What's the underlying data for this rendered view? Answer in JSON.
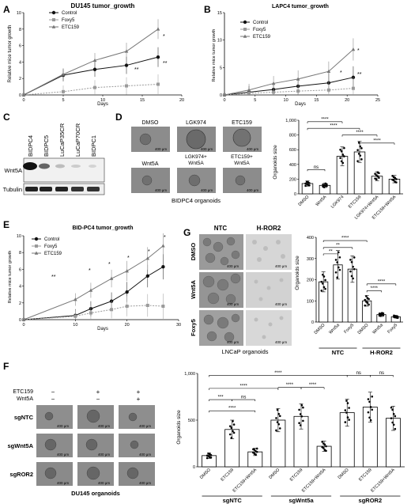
{
  "panels": {
    "A": {
      "letter": "A",
      "title": "DU145 tumor_growth",
      "xlabel": "Days",
      "ylabel": "Relative mice tumor growth",
      "legend": [
        "Control",
        "Foxy5",
        "ETC159"
      ]
    },
    "B": {
      "letter": "B",
      "title": "LAPC4 tumor_growth",
      "xlabel": "Days",
      "ylabel": "Relative mice tumor growth",
      "legend": [
        "Control",
        "Foxy5",
        "ETC159"
      ]
    },
    "C": {
      "letter": "C",
      "lanes": [
        "BIDPC4",
        "BIDPC5",
        "LuCaP35CR",
        "LuCaP70CR",
        "BIDPC1"
      ],
      "rows": [
        "Wnt5A",
        "Tubulin"
      ]
    },
    "D": {
      "letter": "D",
      "image_labels": [
        "DMSO",
        "LGK974",
        "ETC159",
        "Wnt5A",
        "LGK974+\nWnt5A",
        "ETC159+\nWnt5A"
      ],
      "scale": "400 μm",
      "caption": "BIDPC4 organoids",
      "ylabel": "Organoids size",
      "categories": [
        "DMSO",
        "Wnt5A",
        "LGK974",
        "ETC159",
        "LGK974+Wnt5A",
        "ETC159+Wnt5A"
      ],
      "sig": [
        "ns",
        "****",
        "****",
        "****",
        "****"
      ]
    },
    "E": {
      "letter": "E",
      "title": "BID-PC4 tumor_growth",
      "xlabel": "Days",
      "ylabel": "Relative mice tumor growth",
      "legend": [
        "Control",
        "Foxy5",
        "ETC159"
      ]
    },
    "G": {
      "letter": "G",
      "col_labels": [
        "NTC",
        "H-ROR2"
      ],
      "row_labels": [
        "DMSO",
        "Wnt5A",
        "Foxy5"
      ],
      "scale": "400 μm",
      "caption": "LNCaP organoids",
      "ylabel": "Organoids size",
      "categories": [
        "DMSO",
        "Wnt5a",
        "Foxy5",
        "DMSO",
        "Wnt5a",
        "Foxy5"
      ],
      "groups": [
        "NTC",
        "H-ROR2"
      ],
      "sig": [
        "****",
        "**",
        "**",
        "****",
        "****"
      ]
    },
    "F": {
      "letter": "F",
      "treat_labels": [
        "ETC159",
        "Wnt5A"
      ],
      "treat_marks": [
        [
          "−",
          "+",
          "+"
        ],
        [
          "−",
          "−",
          "+"
        ]
      ],
      "row_labels": [
        "sgNTC",
        "sgWnt5A",
        "sgROR2"
      ],
      "scale": "400 μm",
      "caption": "DU145 organoids",
      "ylabel": "Organoids size",
      "categories": [
        "DMSO",
        "ETC159",
        "ETC159+Wnt5A",
        "DMSO",
        "ETC159",
        "ETC159+Wnt5A",
        "DMSO",
        "ETC159",
        "ETC159+Wnt5A"
      ],
      "groups": [
        "sgNTC",
        "sgWnt5a",
        "sgROR2"
      ],
      "sig": [
        "****",
        "****",
        "***",
        "ns",
        "****",
        "****",
        "****",
        "ns",
        "ns"
      ]
    }
  },
  "chart_data": [
    {
      "panel": "A",
      "type": "line",
      "title": "DU145 tumor_growth",
      "xlabel": "Days",
      "ylabel": "Relative mice tumor growth",
      "x": [
        0,
        5,
        9,
        13,
        17
      ],
      "xlim": [
        0,
        20
      ],
      "xticks": [
        0,
        5,
        10,
        15,
        20
      ],
      "ylim": [
        0,
        10
      ],
      "yticks": [
        0,
        2,
        4,
        6,
        8,
        10
      ],
      "series": [
        {
          "name": "Control",
          "values": [
            0,
            2.4,
            3.1,
            3.6,
            4.6
          ]
        },
        {
          "name": "Foxy5",
          "values": [
            0,
            0.4,
            0.9,
            1.1,
            1.3
          ]
        },
        {
          "name": "ETC159",
          "values": [
            0,
            2.5,
            4.2,
            5.3,
            8.0
          ]
        }
      ],
      "annotations": [
        "*",
        "**",
        "**"
      ]
    },
    {
      "panel": "B",
      "type": "line",
      "title": "LAPC4 tumor_growth",
      "xlabel": "Days",
      "ylabel": "Relative mice tumor growth",
      "x": [
        0,
        4,
        8,
        12,
        17,
        21
      ],
      "xlim": [
        0,
        25
      ],
      "xticks": [
        0,
        5,
        10,
        15,
        20,
        25
      ],
      "ylim": [
        0,
        15
      ],
      "yticks": [
        0,
        5,
        10,
        15
      ],
      "series": [
        {
          "name": "Control",
          "values": [
            0,
            0.5,
            1.0,
            1.6,
            2.2,
            3.2
          ]
        },
        {
          "name": "Foxy5",
          "values": [
            0,
            0.3,
            0.5,
            0.7,
            0.9,
            1.2
          ]
        },
        {
          "name": "ETC159",
          "values": [
            0,
            0.9,
            2.1,
            2.9,
            4.3,
            8.3
          ]
        }
      ],
      "annotations": [
        "*",
        "**",
        "*"
      ]
    },
    {
      "panel": "D",
      "type": "bar",
      "ylabel": "Organoids size",
      "categories": [
        "DMSO",
        "Wnt5A",
        "LGK974",
        "ETC159",
        "LGK974+Wnt5A",
        "ETC159+Wnt5A"
      ],
      "values": [
        140,
        115,
        510,
        570,
        240,
        200
      ],
      "ylim": [
        0,
        1000
      ],
      "yticks": [
        0,
        200,
        400,
        600,
        800,
        1000
      ]
    },
    {
      "panel": "E",
      "type": "line",
      "title": "BID-PC4 tumor_growth",
      "xlabel": "Days",
      "ylabel": "Relative mice tumor growth",
      "x": [
        0,
        10,
        13,
        17,
        20,
        24,
        27
      ],
      "xlim": [
        0,
        30
      ],
      "xticks": [
        0,
        10,
        20,
        30
      ],
      "ylim": [
        0,
        10
      ],
      "yticks": [
        0,
        2,
        4,
        6,
        8,
        10
      ],
      "series": [
        {
          "name": "Control",
          "values": [
            0,
            0.5,
            1.3,
            2.2,
            3.3,
            5.2,
            6.3
          ]
        },
        {
          "name": "Foxy5",
          "values": [
            0,
            0.4,
            0.8,
            1.2,
            1.6,
            1.7,
            1.6
          ]
        },
        {
          "name": "ETC159",
          "values": [
            0,
            2.4,
            3.5,
            4.9,
            5.8,
            7.3,
            8.8
          ]
        }
      ],
      "annotations": [
        "**",
        "*",
        "*",
        "*",
        "*",
        "*"
      ]
    },
    {
      "panel": "G",
      "type": "bar",
      "ylabel": "Organoids size",
      "categories": [
        "DMSO",
        "Wnt5a",
        "Foxy5",
        "DMSO",
        "Wnt5a",
        "Foxy5"
      ],
      "groups": [
        "NTC",
        "H-ROR2"
      ],
      "values": [
        190,
        270,
        250,
        100,
        35,
        25
      ],
      "ylim": [
        0,
        400
      ],
      "yticks": [
        0,
        100,
        200,
        300,
        400
      ]
    },
    {
      "panel": "F",
      "type": "bar",
      "ylabel": "Organoids size",
      "categories": [
        "DMSO",
        "ETC159",
        "ETC159+Wnt5A",
        "DMSO",
        "ETC159",
        "ETC159+Wnt5A",
        "DMSO",
        "ETC159",
        "ETC159+Wnt5A"
      ],
      "groups": [
        "sgNTC",
        "sgWnt5a",
        "sgROR2"
      ],
      "values": [
        120,
        400,
        160,
        500,
        540,
        220,
        580,
        640,
        520
      ],
      "ylim": [
        0,
        1000
      ],
      "yticks": [
        0,
        500,
        1000
      ]
    }
  ],
  "colors": {
    "control": "#111111",
    "foxy5": "#9a9a9a",
    "etc159": "#777777",
    "image_bg": "#8e8e8e",
    "pale_bg": "#d8d8d8"
  }
}
